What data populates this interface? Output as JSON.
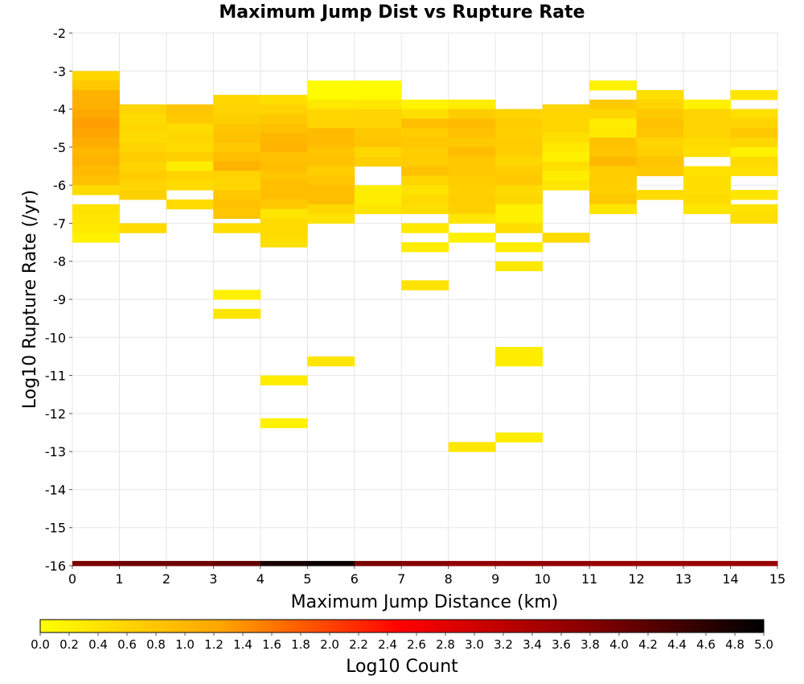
{
  "chart_data": {
    "type": "heatmap",
    "title": "Maximum Jump Dist vs Rupture Rate",
    "xlabel": "Maximum Jump Distance (km)",
    "ylabel": "Log10 Rupture Rate (/yr)",
    "xlim": [
      0,
      15
    ],
    "ylim": [
      -16,
      -2
    ],
    "x_ticks": [
      0,
      1,
      2,
      3,
      4,
      5,
      6,
      7,
      8,
      9,
      10,
      11,
      12,
      13,
      14,
      15
    ],
    "y_ticks": [
      -16,
      -15,
      -14,
      -13,
      -12,
      -11,
      -10,
      -9,
      -8,
      -7,
      -6,
      -5,
      -4,
      -3,
      -2
    ],
    "x_bin_width": 1,
    "y_bin_height": 0.25,
    "grid": true,
    "colorbar": {
      "label": "Log10 Count",
      "min": 0.0,
      "max": 5.0,
      "ticks": [
        "0.0",
        "0.2",
        "0.4",
        "0.6",
        "0.8",
        "1.0",
        "1.2",
        "1.4",
        "1.6",
        "1.8",
        "2.0",
        "2.2",
        "2.4",
        "2.6",
        "2.8",
        "3.0",
        "3.2",
        "3.4",
        "3.6",
        "3.8",
        "4.0",
        "4.2",
        "4.4",
        "4.6",
        "4.8",
        "5.0"
      ],
      "colors": [
        "#ffff00",
        "#ffa500",
        "#ff0000",
        "#8b0000",
        "#000000"
      ]
    },
    "cells": [
      [
        0,
        -3.125,
        0.55
      ],
      [
        0,
        -3.375,
        0.75
      ],
      [
        0,
        -3.625,
        1.05
      ],
      [
        0,
        -3.875,
        1.1
      ],
      [
        0,
        -4.125,
        1.2
      ],
      [
        0,
        -4.375,
        1.3
      ],
      [
        0,
        -4.625,
        1.25
      ],
      [
        0,
        -4.875,
        1.15
      ],
      [
        0,
        -5.125,
        1.0
      ],
      [
        0,
        -5.375,
        1.05
      ],
      [
        0,
        -5.625,
        0.95
      ],
      [
        0,
        -5.875,
        0.85
      ],
      [
        0,
        -6.125,
        0.5
      ],
      [
        0,
        -6.625,
        0.4
      ],
      [
        0,
        -6.875,
        0.35
      ],
      [
        0,
        -7.125,
        0.3
      ],
      [
        0,
        -7.375,
        0.2
      ],
      [
        1,
        -4.0,
        0.6
      ],
      [
        1,
        -4.25,
        0.5
      ],
      [
        1,
        -4.5,
        0.55
      ],
      [
        1,
        -4.75,
        0.5
      ],
      [
        1,
        -5.0,
        0.6
      ],
      [
        1,
        -5.25,
        0.7
      ],
      [
        1,
        -5.5,
        0.6
      ],
      [
        1,
        -5.75,
        0.7
      ],
      [
        1,
        -6.0,
        0.6
      ],
      [
        1,
        -6.25,
        0.65
      ],
      [
        1,
        -7.125,
        0.5
      ],
      [
        2,
        -4.0,
        0.8
      ],
      [
        2,
        -4.25,
        0.75
      ],
      [
        2,
        -4.5,
        0.5
      ],
      [
        2,
        -4.75,
        0.55
      ],
      [
        2,
        -5.0,
        0.5
      ],
      [
        2,
        -5.25,
        0.65
      ],
      [
        2,
        -5.5,
        0.25
      ],
      [
        2,
        -5.75,
        0.6
      ],
      [
        2,
        -6.0,
        0.5
      ],
      [
        2,
        -6.5,
        0.5
      ],
      [
        3,
        -3.75,
        0.55
      ],
      [
        3,
        -4.0,
        0.6
      ],
      [
        3,
        -4.25,
        0.65
      ],
      [
        3,
        -4.5,
        0.8
      ],
      [
        3,
        -4.75,
        0.85
      ],
      [
        3,
        -5.0,
        0.75
      ],
      [
        3,
        -5.25,
        0.9
      ],
      [
        3,
        -5.5,
        1.05
      ],
      [
        3,
        -5.75,
        0.6
      ],
      [
        3,
        -6.0,
        0.55
      ],
      [
        3,
        -6.25,
        0.75
      ],
      [
        3,
        -6.5,
        0.85
      ],
      [
        3,
        -6.75,
        0.8
      ],
      [
        3,
        -7.125,
        0.45
      ],
      [
        3,
        -8.875,
        0.2
      ],
      [
        3,
        -9.375,
        0.35
      ],
      [
        4,
        -3.75,
        0.45
      ],
      [
        4,
        -4.0,
        0.6
      ],
      [
        4,
        -4.25,
        0.75
      ],
      [
        4,
        -4.5,
        0.85
      ],
      [
        4,
        -4.75,
        1.0
      ],
      [
        4,
        -5.0,
        1.05
      ],
      [
        4,
        -5.25,
        0.85
      ],
      [
        4,
        -5.5,
        0.9
      ],
      [
        4,
        -5.75,
        0.8
      ],
      [
        4,
        -6.0,
        0.9
      ],
      [
        4,
        -6.25,
        0.9
      ],
      [
        4,
        -6.5,
        0.75
      ],
      [
        4,
        -6.75,
        0.35
      ],
      [
        4,
        -7.0,
        0.5
      ],
      [
        4,
        -7.25,
        0.5
      ],
      [
        4,
        -7.5,
        0.45
      ],
      [
        4,
        -11.125,
        0.25
      ],
      [
        4,
        -12.25,
        0.2
      ],
      [
        5,
        -3.375,
        0.05
      ],
      [
        5,
        -3.625,
        0.05
      ],
      [
        5,
        -3.875,
        0.3
      ],
      [
        5,
        -4.125,
        0.55
      ],
      [
        5,
        -4.375,
        0.6
      ],
      [
        5,
        -4.625,
        0.95
      ],
      [
        5,
        -4.875,
        0.95
      ],
      [
        5,
        -5.125,
        0.8
      ],
      [
        5,
        -5.375,
        0.85
      ],
      [
        5,
        -5.625,
        0.7
      ],
      [
        5,
        -5.875,
        0.8
      ],
      [
        5,
        -6.125,
        0.9
      ],
      [
        5,
        -6.375,
        0.9
      ],
      [
        5,
        -6.625,
        0.55
      ],
      [
        5,
        -6.875,
        0.4
      ],
      [
        5,
        -10.625,
        0.35
      ],
      [
        6,
        -3.375,
        0.05
      ],
      [
        6,
        -3.625,
        0.05
      ],
      [
        6,
        -3.875,
        0.35
      ],
      [
        6,
        -4.125,
        0.6
      ],
      [
        6,
        -4.375,
        0.6
      ],
      [
        6,
        -4.625,
        0.75
      ],
      [
        6,
        -4.875,
        0.8
      ],
      [
        6,
        -5.125,
        0.55
      ],
      [
        6,
        -5.375,
        0.65
      ],
      [
        6,
        -6.125,
        0.25
      ],
      [
        6,
        -6.375,
        0.25
      ],
      [
        6,
        -6.625,
        0.35
      ],
      [
        7,
        -3.875,
        0.15
      ],
      [
        7,
        -4.125,
        0.45
      ],
      [
        7,
        -4.375,
        0.9
      ],
      [
        7,
        -4.625,
        0.7
      ],
      [
        7,
        -4.875,
        0.75
      ],
      [
        7,
        -5.125,
        0.7
      ],
      [
        7,
        -5.375,
        0.7
      ],
      [
        7,
        -5.625,
        0.85
      ],
      [
        7,
        -5.875,
        0.55
      ],
      [
        7,
        -6.125,
        0.4
      ],
      [
        7,
        -6.375,
        0.5
      ],
      [
        7,
        -6.625,
        0.45
      ],
      [
        7,
        -7.125,
        0.3
      ],
      [
        7,
        -7.625,
        0.25
      ],
      [
        7,
        -8.625,
        0.4
      ],
      [
        8,
        -3.875,
        0.25
      ],
      [
        8,
        -4.125,
        0.7
      ],
      [
        8,
        -4.375,
        0.95
      ],
      [
        8,
        -4.625,
        0.85
      ],
      [
        8,
        -4.875,
        0.75
      ],
      [
        8,
        -5.125,
        0.95
      ],
      [
        8,
        -5.375,
        0.75
      ],
      [
        8,
        -5.625,
        0.75
      ],
      [
        8,
        -5.875,
        0.7
      ],
      [
        8,
        -6.125,
        0.65
      ],
      [
        8,
        -6.375,
        0.7
      ],
      [
        8,
        -6.625,
        0.65
      ],
      [
        8,
        -6.875,
        0.35
      ],
      [
        8,
        -7.375,
        0.2
      ],
      [
        8,
        -12.875,
        0.35
      ],
      [
        9,
        -4.125,
        0.6
      ],
      [
        9,
        -4.375,
        0.7
      ],
      [
        9,
        -4.625,
        0.65
      ],
      [
        9,
        -4.875,
        0.7
      ],
      [
        9,
        -5.125,
        0.7
      ],
      [
        9,
        -5.375,
        0.55
      ],
      [
        9,
        -5.625,
        0.7
      ],
      [
        9,
        -5.875,
        0.75
      ],
      [
        9,
        -6.125,
        0.5
      ],
      [
        9,
        -6.375,
        0.55
      ],
      [
        9,
        -6.625,
        0.2
      ],
      [
        9,
        -6.875,
        0.2
      ],
      [
        9,
        -7.125,
        0.45
      ],
      [
        9,
        -7.625,
        0.25
      ],
      [
        9,
        -8.125,
        0.3
      ],
      [
        9,
        -10.375,
        0.25
      ],
      [
        9,
        -10.625,
        0.25
      ],
      [
        9,
        -12.625,
        0.25
      ],
      [
        10,
        -4.0,
        0.6
      ],
      [
        10,
        -4.25,
        0.55
      ],
      [
        10,
        -4.5,
        0.55
      ],
      [
        10,
        -4.75,
        0.45
      ],
      [
        10,
        -5.0,
        0.3
      ],
      [
        10,
        -5.25,
        0.2
      ],
      [
        10,
        -5.5,
        0.45
      ],
      [
        10,
        -5.75,
        0.25
      ],
      [
        10,
        -6.0,
        0.35
      ],
      [
        10,
        -7.375,
        0.5
      ],
      [
        11,
        -3.375,
        0.2
      ],
      [
        11,
        -3.875,
        0.75
      ],
      [
        11,
        -4.125,
        0.55
      ],
      [
        11,
        -4.375,
        0.25
      ],
      [
        11,
        -4.625,
        0.3
      ],
      [
        11,
        -4.875,
        0.85
      ],
      [
        11,
        -5.125,
        0.8
      ],
      [
        11,
        -5.375,
        1.0
      ],
      [
        11,
        -5.625,
        0.7
      ],
      [
        11,
        -5.875,
        0.7
      ],
      [
        11,
        -6.125,
        0.65
      ],
      [
        11,
        -6.375,
        0.75
      ],
      [
        11,
        -6.625,
        0.35
      ],
      [
        12,
        -3.625,
        0.45
      ],
      [
        12,
        -3.875,
        0.6
      ],
      [
        12,
        -4.125,
        0.75
      ],
      [
        12,
        -4.375,
        0.85
      ],
      [
        12,
        -4.625,
        0.8
      ],
      [
        12,
        -4.875,
        0.6
      ],
      [
        12,
        -5.125,
        0.65
      ],
      [
        12,
        -5.375,
        0.8
      ],
      [
        12,
        -5.625,
        0.75
      ],
      [
        12,
        -6.25,
        0.5
      ],
      [
        13,
        -3.875,
        0.2
      ],
      [
        13,
        -4.125,
        0.6
      ],
      [
        13,
        -4.375,
        0.6
      ],
      [
        13,
        -4.625,
        0.6
      ],
      [
        13,
        -4.875,
        0.5
      ],
      [
        13,
        -5.125,
        0.45
      ],
      [
        13,
        -5.625,
        0.4
      ],
      [
        13,
        -5.875,
        0.45
      ],
      [
        13,
        -6.125,
        0.45
      ],
      [
        13,
        -6.375,
        0.5
      ],
      [
        13,
        -6.625,
        0.35
      ],
      [
        14,
        -3.625,
        0.35
      ],
      [
        14,
        -4.125,
        0.45
      ],
      [
        14,
        -4.375,
        0.6
      ],
      [
        14,
        -4.625,
        0.75
      ],
      [
        14,
        -4.875,
        0.55
      ],
      [
        14,
        -5.125,
        0.2
      ],
      [
        14,
        -5.375,
        0.5
      ],
      [
        14,
        -5.625,
        0.45
      ],
      [
        14,
        -6.25,
        0.35
      ],
      [
        14,
        -6.625,
        0.4
      ],
      [
        14,
        -6.875,
        0.45
      ],
      [
        0,
        -16,
        3.9
      ],
      [
        1,
        -16,
        4.0
      ],
      [
        2,
        -16,
        4.0
      ],
      [
        3,
        -16,
        4.1
      ],
      [
        4,
        -16,
        4.8
      ],
      [
        5,
        -16,
        4.9
      ],
      [
        6,
        -16,
        3.9
      ],
      [
        7,
        -16,
        3.8
      ],
      [
        8,
        -16,
        3.7
      ],
      [
        9,
        -16,
        3.7
      ],
      [
        10,
        -16,
        3.7
      ],
      [
        11,
        -16,
        3.6
      ],
      [
        12,
        -16,
        3.6
      ],
      [
        13,
        -16,
        3.6
      ],
      [
        14,
        -16,
        3.6
      ]
    ]
  }
}
